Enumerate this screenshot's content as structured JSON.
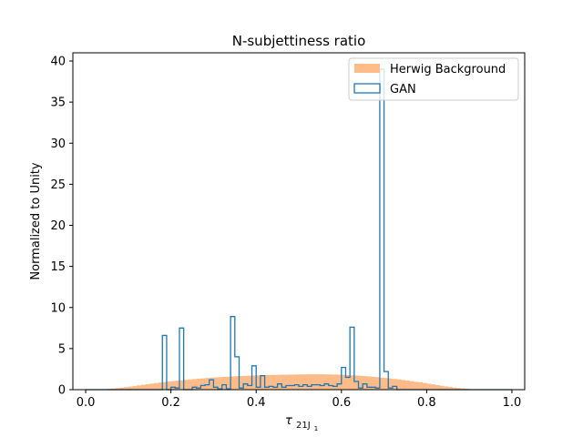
{
  "chart_data": {
    "type": "bar",
    "title": "N-subjettiness ratio",
    "xlabel_main": "τ",
    "xlabel_sub": "21J",
    "xlabel_subsub": "1",
    "ylabel": "Normalized to Unity",
    "xlim": [
      -0.03,
      1.03
    ],
    "ylim": [
      0,
      41
    ],
    "xticks": [
      0.0,
      0.2,
      0.4,
      0.6,
      0.8,
      1.0
    ],
    "xtick_labels": [
      "0.0",
      "0.2",
      "0.4",
      "0.6",
      "0.8",
      "1.0"
    ],
    "yticks": [
      0,
      5,
      10,
      15,
      20,
      25,
      30,
      35,
      40
    ],
    "ytick_labels": [
      "0",
      "5",
      "10",
      "15",
      "20",
      "25",
      "30",
      "35",
      "40"
    ],
    "grid": false,
    "legend_position": "top-right",
    "series": [
      {
        "name": "Herwig Background",
        "style": "filled",
        "color": "#ffbb88",
        "bin_range": [
          0.0,
          1.0
        ],
        "values": [
          0.0,
          0.0,
          0.01,
          0.03,
          0.06,
          0.1,
          0.14,
          0.19,
          0.25,
          0.31,
          0.38,
          0.45,
          0.52,
          0.59,
          0.66,
          0.73,
          0.8,
          0.86,
          0.92,
          0.98,
          1.04,
          1.09,
          1.14,
          1.19,
          1.24,
          1.29,
          1.33,
          1.37,
          1.41,
          1.45,
          1.49,
          1.52,
          1.55,
          1.58,
          1.61,
          1.64,
          1.66,
          1.68,
          1.7,
          1.72,
          1.74,
          1.76,
          1.78,
          1.79,
          1.8,
          1.81,
          1.82,
          1.83,
          1.84,
          1.85,
          1.86,
          1.86,
          1.87,
          1.87,
          1.87,
          1.87,
          1.86,
          1.85,
          1.84,
          1.82,
          1.8,
          1.78,
          1.75,
          1.72,
          1.69,
          1.65,
          1.61,
          1.57,
          1.52,
          1.47,
          1.42,
          1.36,
          1.3,
          1.24,
          1.17,
          1.1,
          1.03,
          0.96,
          0.88,
          0.8,
          0.72,
          0.64,
          0.56,
          0.48,
          0.4,
          0.33,
          0.26,
          0.2,
          0.15,
          0.1,
          0.06,
          0.03,
          0.01,
          0.0,
          0.0,
          0.0,
          0.0,
          0.0,
          0.0,
          0.0
        ]
      },
      {
        "name": "GAN",
        "style": "step",
        "color": "#1f77b4",
        "bin_range": [
          0.0,
          1.0
        ],
        "values": [
          0,
          0,
          0,
          0,
          0,
          0,
          0,
          0,
          0,
          0,
          0,
          0,
          0,
          0,
          0,
          0,
          0,
          0,
          6.6,
          0,
          0.3,
          0.2,
          7.5,
          0,
          0,
          0.3,
          0.2,
          0.5,
          0.6,
          1.2,
          0.3,
          0.1,
          0.6,
          0.1,
          8.9,
          4.0,
          0.2,
          0.7,
          0.5,
          2.9,
          0.3,
          1.7,
          0.3,
          0.4,
          0.3,
          0.7,
          0.3,
          0.5,
          0.5,
          0.6,
          0.4,
          0.6,
          0.4,
          0.6,
          0.6,
          0.5,
          0.7,
          0.5,
          0.4,
          0.7,
          2.7,
          1.5,
          7.6,
          1.0,
          0.2,
          0.7,
          0.3,
          0.3,
          0.2,
          39.0,
          2.2,
          0.2,
          0.4,
          0,
          0,
          0,
          0,
          0,
          0,
          0,
          0,
          0,
          0,
          0,
          0,
          0,
          0,
          0,
          0,
          0,
          0,
          0,
          0,
          0,
          0,
          0,
          0,
          0,
          0,
          0
        ]
      }
    ]
  }
}
